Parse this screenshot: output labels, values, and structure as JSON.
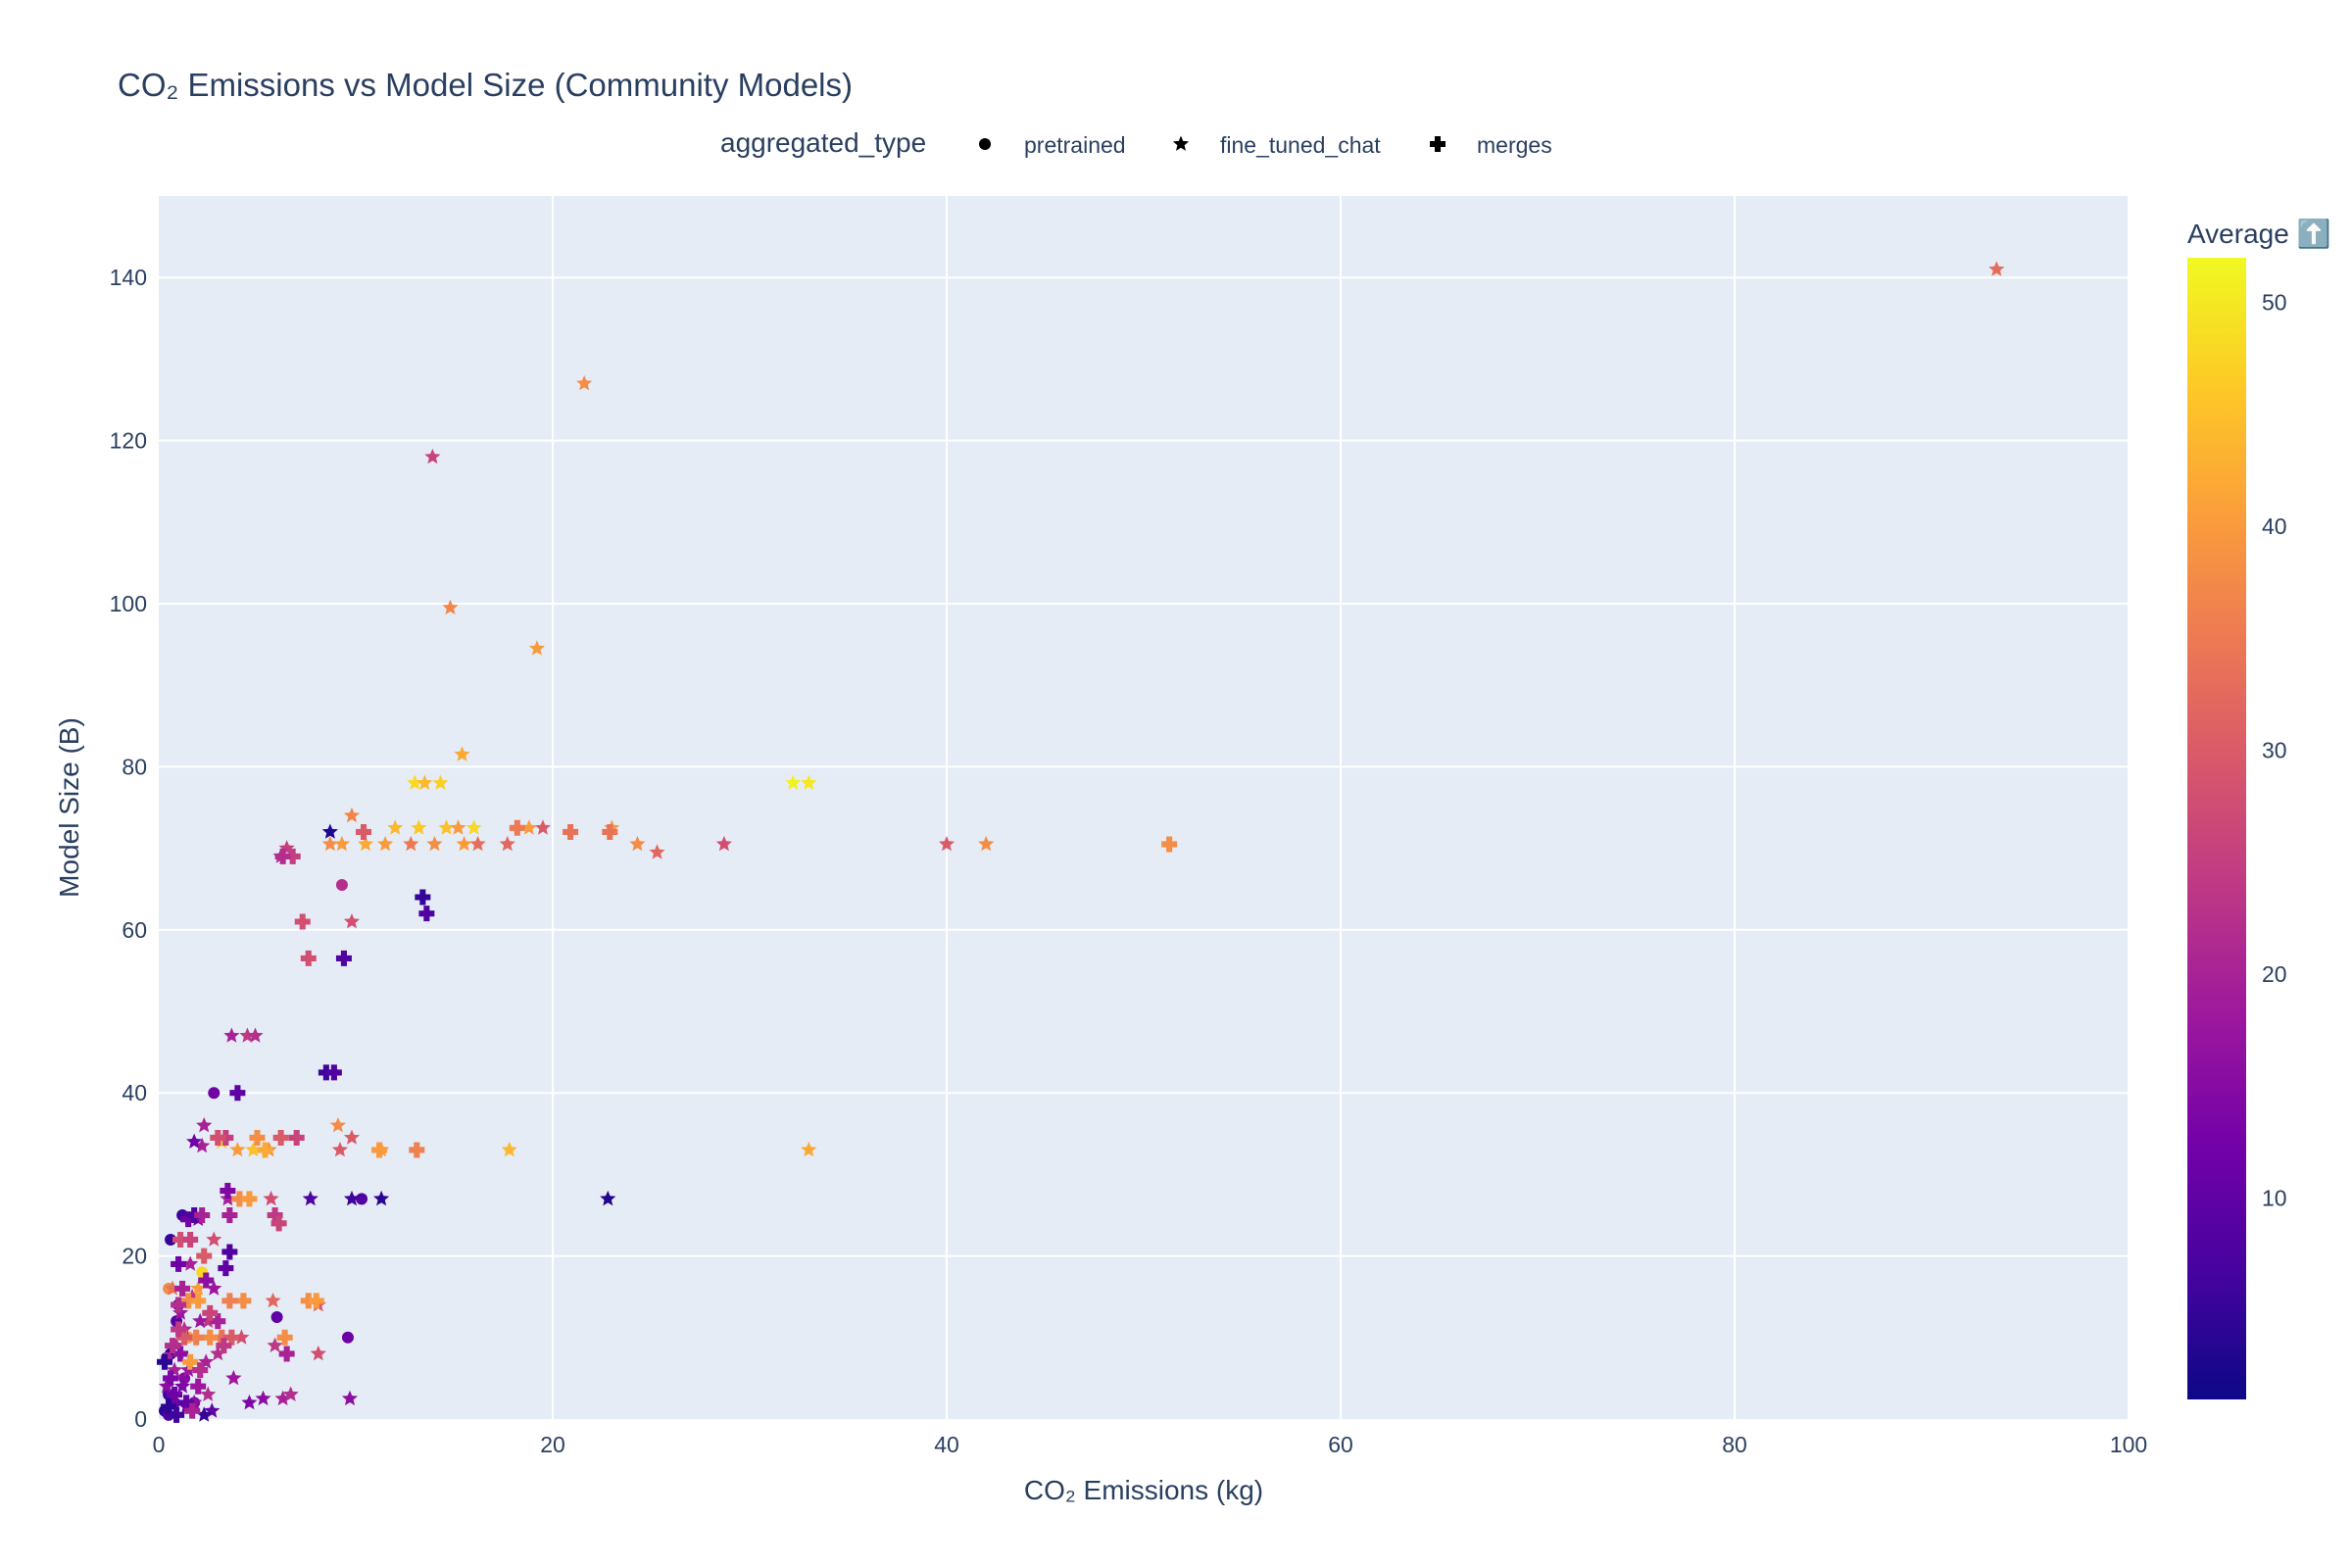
{
  "chart_data": {
    "type": "scatter",
    "title": "CO₂ Emissions vs Model Size (Community Models)",
    "xlabel": "CO₂ Emissions (kg)",
    "ylabel": "Model Size (B)",
    "xlim": [
      0,
      100
    ],
    "ylim": [
      0,
      150
    ],
    "x_ticks": [
      0,
      20,
      40,
      60,
      80,
      100
    ],
    "y_ticks": [
      0,
      20,
      40,
      60,
      80,
      100,
      120,
      140
    ],
    "grid": true,
    "legend": {
      "title": "aggregated_type",
      "placement": "top-center",
      "entries": [
        {
          "name": "pretrained",
          "symbol": "circle"
        },
        {
          "name": "fine_tuned_chat",
          "symbol": "star"
        },
        {
          "name": "merges",
          "symbol": "cross"
        }
      ]
    },
    "colorbar": {
      "title": "Average ⬆️",
      "range": [
        1,
        52
      ],
      "ticks": [
        10,
        20,
        30,
        40,
        50
      ],
      "colorscale": [
        "#0d0887",
        "#46039f",
        "#7201a8",
        "#9c179e",
        "#bd3786",
        "#d8576b",
        "#ed7953",
        "#fb9f3a",
        "#fdca26",
        "#f0f921"
      ]
    },
    "series": [
      {
        "name": "pretrained",
        "symbol": "circle",
        "points": [
          [
            0.6,
            22,
            5
          ],
          [
            0.5,
            16,
            38
          ],
          [
            0.6,
            8,
            3
          ],
          [
            0.4,
            7.5,
            20
          ],
          [
            0.5,
            3,
            6
          ],
          [
            0.8,
            2,
            12
          ],
          [
            0.3,
            1,
            4
          ],
          [
            0.5,
            0.5,
            8
          ],
          [
            1.0,
            14,
            10
          ],
          [
            1.5,
            10,
            40
          ],
          [
            1.2,
            25,
            6
          ],
          [
            2.8,
            40,
            12
          ],
          [
            6.0,
            12.5,
            10
          ],
          [
            9.6,
            10,
            12
          ],
          [
            9.3,
            65.5,
            22
          ],
          [
            10.3,
            27,
            8
          ],
          [
            1.8,
            2,
            14
          ],
          [
            2.2,
            18,
            48
          ],
          [
            0.9,
            12,
            9
          ],
          [
            1.3,
            5,
            15
          ]
        ]
      },
      {
        "name": "fine_tuned_chat",
        "symbol": "star",
        "points": [
          [
            93.3,
            141,
            33
          ],
          [
            21.6,
            127,
            38
          ],
          [
            13.9,
            118,
            26
          ],
          [
            14.8,
            99.5,
            37
          ],
          [
            19.2,
            94.5,
            40
          ],
          [
            15.4,
            81.5,
            42
          ],
          [
            13.0,
            78,
            48
          ],
          [
            13.5,
            78,
            44
          ],
          [
            14.3,
            78,
            47
          ],
          [
            32.2,
            78,
            51
          ],
          [
            33.0,
            78,
            50
          ],
          [
            9.8,
            74,
            37
          ],
          [
            8.7,
            72,
            3
          ],
          [
            12.0,
            72.5,
            44
          ],
          [
            13.2,
            72.5,
            46
          ],
          [
            14.6,
            72.5,
            45
          ],
          [
            15.2,
            72.5,
            40
          ],
          [
            16.0,
            72.5,
            48
          ],
          [
            18.8,
            72.5,
            40
          ],
          [
            19.5,
            72.5,
            30
          ],
          [
            23.0,
            72.5,
            40
          ],
          [
            8.7,
            70.5,
            38
          ],
          [
            9.3,
            70.5,
            40
          ],
          [
            10.5,
            70.5,
            42
          ],
          [
            11.5,
            70.5,
            40
          ],
          [
            12.8,
            70.5,
            35
          ],
          [
            14.0,
            70.5,
            38
          ],
          [
            15.5,
            70.5,
            40
          ],
          [
            16.2,
            70.5,
            33
          ],
          [
            17.7,
            70.5,
            32
          ],
          [
            24.3,
            70.5,
            38
          ],
          [
            25.3,
            69.5,
            32
          ],
          [
            28.7,
            70.5,
            28
          ],
          [
            40.0,
            70.5,
            30
          ],
          [
            42.0,
            70.5,
            38
          ],
          [
            6.2,
            69,
            22
          ],
          [
            6.5,
            70,
            25
          ],
          [
            9.8,
            61,
            28
          ],
          [
            3.7,
            47,
            20
          ],
          [
            4.5,
            47,
            24
          ],
          [
            4.9,
            47,
            22
          ],
          [
            2.3,
            36,
            20
          ],
          [
            9.1,
            36,
            38
          ],
          [
            3.2,
            34,
            45
          ],
          [
            9.8,
            34.5,
            30
          ],
          [
            9.2,
            33,
            30
          ],
          [
            11.3,
            33,
            40
          ],
          [
            17.8,
            33,
            44
          ],
          [
            33.0,
            33,
            42
          ],
          [
            2.2,
            33.5,
            20
          ],
          [
            1.8,
            34,
            12
          ],
          [
            4.0,
            33,
            40
          ],
          [
            4.8,
            33,
            45
          ],
          [
            5.6,
            33,
            38
          ],
          [
            7.7,
            27,
            8
          ],
          [
            9.8,
            27,
            6
          ],
          [
            11.3,
            27,
            4
          ],
          [
            22.8,
            27,
            3
          ],
          [
            3.5,
            27,
            20
          ],
          [
            5.7,
            27,
            28
          ],
          [
            2.0,
            24.5,
            14
          ],
          [
            2.8,
            22,
            28
          ],
          [
            1.6,
            19,
            20
          ],
          [
            2.0,
            16,
            40
          ],
          [
            2.8,
            16,
            18
          ],
          [
            0.7,
            16,
            34
          ],
          [
            5.8,
            14.5,
            32
          ],
          [
            8.1,
            14,
            30
          ],
          [
            2.5,
            12,
            24
          ],
          [
            1.3,
            11,
            22
          ],
          [
            3.2,
            10,
            36
          ],
          [
            4.2,
            10,
            28
          ],
          [
            5.9,
            9,
            24
          ],
          [
            8.1,
            8,
            28
          ],
          [
            2.4,
            7,
            20
          ],
          [
            1.5,
            6,
            18
          ],
          [
            3.0,
            8,
            22
          ],
          [
            3.8,
            5,
            18
          ],
          [
            4.6,
            2,
            14
          ],
          [
            5.3,
            2.5,
            16
          ],
          [
            6.3,
            2.5,
            20
          ],
          [
            6.7,
            3,
            22
          ],
          [
            9.7,
            2.5,
            16
          ],
          [
            2.5,
            3,
            22
          ],
          [
            2.7,
            1,
            10
          ],
          [
            1.8,
            2,
            16
          ],
          [
            1.2,
            4,
            14
          ],
          [
            0.8,
            6,
            20
          ],
          [
            2.3,
            0.5,
            5
          ],
          [
            0.9,
            9,
            22
          ],
          [
            1.1,
            13,
            18
          ],
          [
            1.7,
            15,
            24
          ],
          [
            2.1,
            12,
            18
          ],
          [
            0.4,
            4,
            16
          ],
          [
            1.4,
            1.5,
            12
          ]
        ]
      },
      {
        "name": "merges",
        "symbol": "cross",
        "points": [
          [
            51.3,
            70.5,
            38
          ],
          [
            22.9,
            72,
            34
          ],
          [
            20.9,
            72,
            34
          ],
          [
            18.2,
            72.5,
            35
          ],
          [
            10.4,
            72,
            30
          ],
          [
            6.8,
            69,
            25
          ],
          [
            6.3,
            69,
            22
          ],
          [
            13.4,
            64,
            5
          ],
          [
            13.6,
            62,
            8
          ],
          [
            7.3,
            61,
            28
          ],
          [
            7.6,
            56.5,
            28
          ],
          [
            9.4,
            56.5,
            8
          ],
          [
            8.5,
            42.5,
            6
          ],
          [
            8.9,
            42.5,
            8
          ],
          [
            4.0,
            40,
            10
          ],
          [
            3.4,
            34.5,
            25
          ],
          [
            6.2,
            34.5,
            30
          ],
          [
            7.0,
            34.5,
            26
          ],
          [
            3.0,
            34.5,
            28
          ],
          [
            5.0,
            34.5,
            38
          ],
          [
            3.5,
            28,
            14
          ],
          [
            3.6,
            25,
            20
          ],
          [
            5.9,
            25,
            24
          ],
          [
            6.1,
            24,
            26
          ],
          [
            1.5,
            24.5,
            12
          ],
          [
            1.8,
            25,
            8
          ],
          [
            2.2,
            25,
            20
          ],
          [
            3.6,
            20.5,
            8
          ],
          [
            3.4,
            18.5,
            10
          ],
          [
            1.1,
            22,
            28
          ],
          [
            1.6,
            22,
            26
          ],
          [
            1.0,
            19,
            12
          ],
          [
            2.4,
            17,
            16
          ],
          [
            7.6,
            14.5,
            38
          ],
          [
            8.0,
            14.5,
            40
          ],
          [
            4.3,
            14.5,
            38
          ],
          [
            3.6,
            14.5,
            36
          ],
          [
            1.5,
            14.5,
            38
          ],
          [
            2.0,
            14.5,
            40
          ],
          [
            1.0,
            14,
            22
          ],
          [
            3.2,
            10,
            34
          ],
          [
            3.7,
            10,
            30
          ],
          [
            2.6,
            10,
            38
          ],
          [
            1.9,
            10,
            36
          ],
          [
            1.3,
            10,
            30
          ],
          [
            6.4,
            10,
            38
          ],
          [
            6.5,
            8,
            20
          ],
          [
            1.1,
            8,
            16
          ],
          [
            1.6,
            7,
            40
          ],
          [
            2.1,
            6,
            22
          ],
          [
            0.6,
            5,
            14
          ],
          [
            0.8,
            3,
            12
          ],
          [
            1.4,
            2,
            10
          ],
          [
            0.5,
            1.5,
            4
          ],
          [
            0.9,
            0.5,
            6
          ],
          [
            2.0,
            4,
            18
          ],
          [
            2.3,
            20,
            30
          ],
          [
            1.0,
            11,
            24
          ],
          [
            3.0,
            12,
            20
          ],
          [
            0.7,
            9,
            22
          ],
          [
            11.2,
            33,
            40
          ],
          [
            13.1,
            33,
            36
          ],
          [
            5.4,
            33,
            42
          ],
          [
            1.2,
            16,
            20
          ],
          [
            2.6,
            13,
            26
          ],
          [
            0.3,
            7,
            4
          ],
          [
            1.7,
            1,
            20
          ],
          [
            3.3,
            9,
            24
          ],
          [
            4.1,
            27,
            38
          ],
          [
            4.6,
            27,
            40
          ]
        ]
      }
    ]
  }
}
